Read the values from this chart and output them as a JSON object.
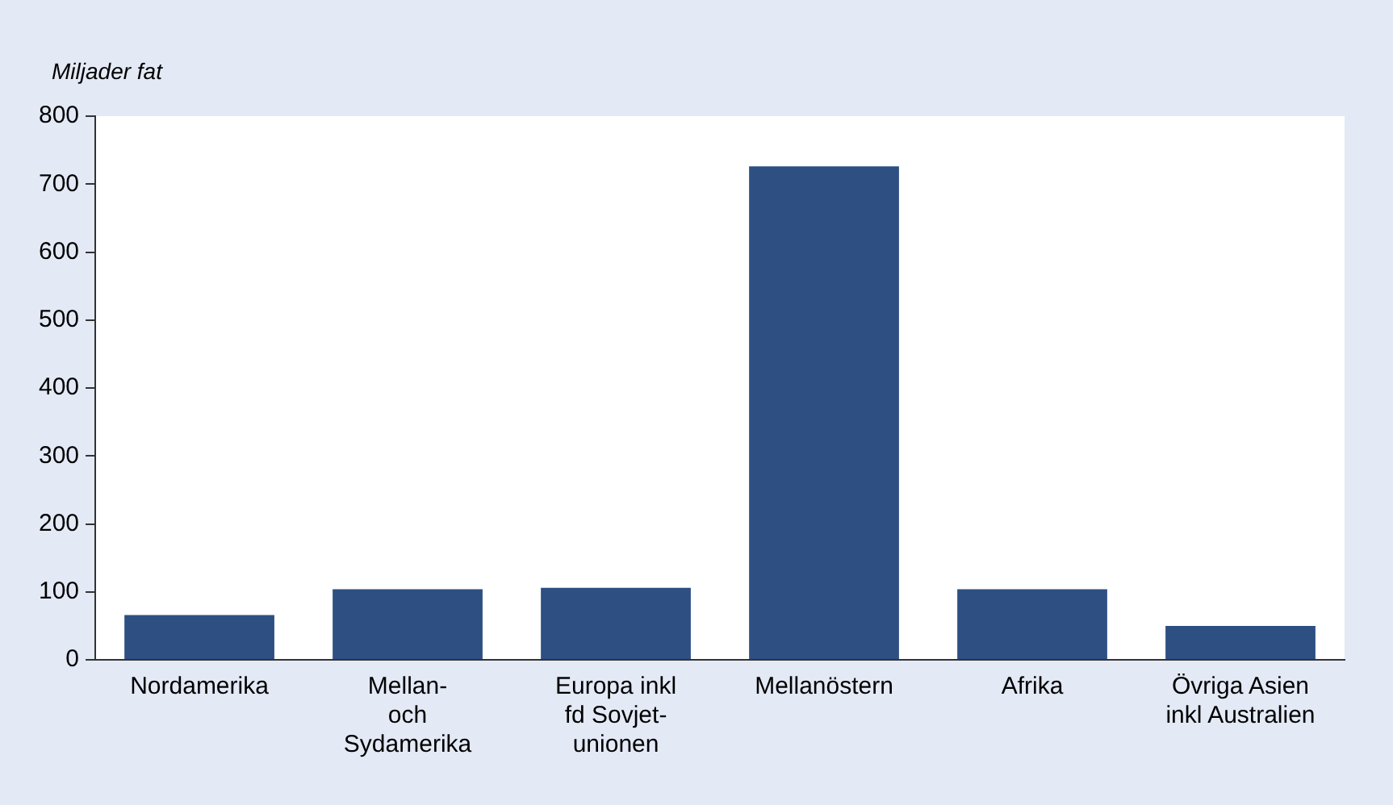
{
  "chart_data": {
    "type": "bar",
    "ylabel": "Miljader fat",
    "categories": [
      "Nordamerika",
      "Mellan-\noch\nSydamerika",
      "Europa inkl\nfd Sovjet-\nunionen",
      "Mellanöstern",
      "Afrika",
      "Övriga Asien\ninkl Australien"
    ],
    "values": [
      66,
      104,
      106,
      726,
      104,
      50
    ],
    "color": "#2d4f82",
    "ylim": [
      0,
      800
    ],
    "yticks": [
      0,
      100,
      200,
      300,
      400,
      500,
      600,
      700,
      800
    ],
    "grid": false,
    "legend": false
  }
}
